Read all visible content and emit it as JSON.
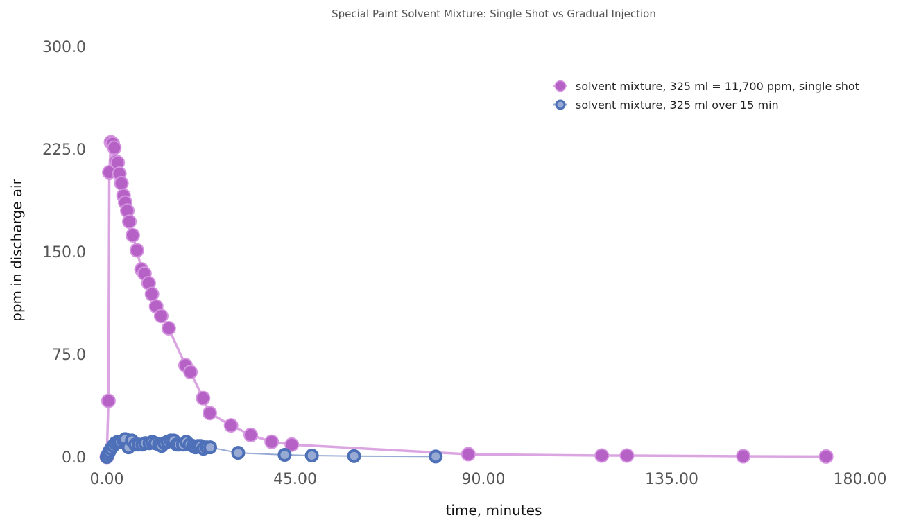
{
  "chart_data": {
    "type": "scatter",
    "title": "Special Paint Solvent Mixture: Single Shot vs Gradual Injection",
    "xlabel": "time, minutes",
    "ylabel": "ppm in discharge air",
    "xlim": [
      0,
      180
    ],
    "ylim": [
      0,
      300
    ],
    "x_ticks": [
      0,
      45,
      90,
      135,
      180
    ],
    "x_tick_labels": [
      "0.00",
      "45.00",
      "90.00",
      "135.00",
      "180.00"
    ],
    "y_ticks": [
      0,
      75,
      150,
      225,
      300
    ],
    "y_tick_labels": [
      "0.0",
      "75.0",
      "150.0",
      "225.0",
      "300.0"
    ],
    "grid": false,
    "legend_position": "top-right",
    "series": [
      {
        "name": "solvent mixture, 325 ml = 11,700 ppm, single shot",
        "color": "#b561c6",
        "line_color": "#dba5e2",
        "marker": "filled-circle",
        "points": [
          [
            0,
            0
          ],
          [
            0.4,
            41
          ],
          [
            0.6,
            208
          ],
          [
            1.0,
            230
          ],
          [
            1.4,
            229
          ],
          [
            1.8,
            226
          ],
          [
            2.2,
            216
          ],
          [
            2.6,
            215
          ],
          [
            3.0,
            207
          ],
          [
            3.5,
            200
          ],
          [
            4.0,
            191
          ],
          [
            4.4,
            186
          ],
          [
            4.9,
            180
          ],
          [
            5.4,
            172
          ],
          [
            6.2,
            162
          ],
          [
            7.2,
            151
          ],
          [
            8.3,
            137
          ],
          [
            9.0,
            134
          ],
          [
            10.0,
            127
          ],
          [
            10.8,
            119
          ],
          [
            11.8,
            110
          ],
          [
            13.0,
            103
          ],
          [
            14.8,
            94
          ],
          [
            18.8,
            67
          ],
          [
            20.0,
            62
          ],
          [
            23.0,
            43
          ],
          [
            24.6,
            32
          ],
          [
            29.7,
            23
          ],
          [
            34.4,
            16
          ],
          [
            39.4,
            11
          ],
          [
            44.2,
            9
          ],
          [
            86.4,
            2
          ],
          [
            118.3,
            1
          ],
          [
            124.3,
            1
          ],
          [
            152.1,
            0.5
          ],
          [
            171.9,
            0.3
          ]
        ]
      },
      {
        "name": "solvent mixture, 325 ml over 15 min",
        "color": "#4e70b8",
        "line_color": "#97aad3",
        "marker": "ringed-circle",
        "points": [
          [
            0,
            0
          ],
          [
            0.3,
            2
          ],
          [
            0.6,
            4
          ],
          [
            1.0,
            6
          ],
          [
            1.5,
            8
          ],
          [
            2.0,
            10
          ],
          [
            2.6,
            11
          ],
          [
            3.2,
            11
          ],
          [
            4.0,
            12
          ],
          [
            4.4,
            13
          ],
          [
            5.2,
            7
          ],
          [
            6.0,
            12
          ],
          [
            6.8,
            9
          ],
          [
            7.6,
            9
          ],
          [
            8.5,
            9
          ],
          [
            9.2,
            10
          ],
          [
            10.2,
            10
          ],
          [
            10.9,
            11
          ],
          [
            11.6,
            10
          ],
          [
            12.5,
            9
          ],
          [
            13.1,
            8
          ],
          [
            13.8,
            10
          ],
          [
            14.5,
            11
          ],
          [
            15.3,
            12
          ],
          [
            16.0,
            12
          ],
          [
            16.7,
            9
          ],
          [
            17.3,
            9
          ],
          [
            18.2,
            9
          ],
          [
            19.0,
            11
          ],
          [
            19.8,
            9
          ],
          [
            20.6,
            8
          ],
          [
            21.2,
            7
          ],
          [
            21.8,
            8
          ],
          [
            22.4,
            8
          ],
          [
            23.1,
            6
          ],
          [
            23.9,
            7
          ],
          [
            24.7,
            7
          ],
          [
            31.4,
            3
          ],
          [
            42.5,
            1.5
          ],
          [
            49.0,
            1
          ],
          [
            59.1,
            0.6
          ],
          [
            78.6,
            0.3
          ]
        ]
      }
    ]
  }
}
